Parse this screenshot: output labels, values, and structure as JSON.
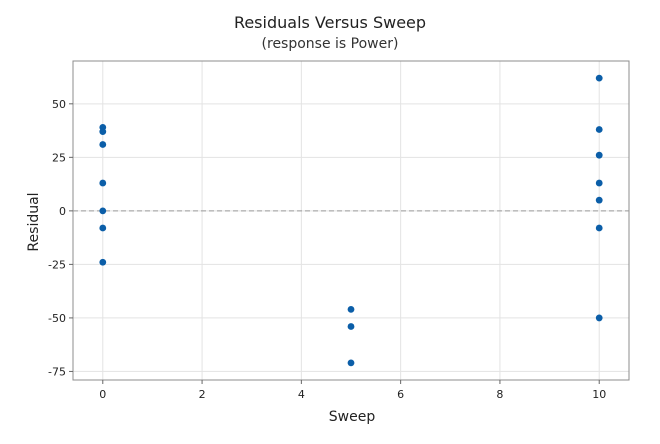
{
  "chart_data": {
    "type": "scatter",
    "title": "Residuals Versus Sweep",
    "subtitle": "(response is Power)",
    "xlabel": "Sweep",
    "ylabel": "Residual",
    "xlim": [
      -0.6,
      10.6
    ],
    "ylim": [
      -79,
      70
    ],
    "x_ticks": [
      0,
      2,
      4,
      6,
      8,
      10
    ],
    "y_ticks": [
      50,
      25,
      0,
      -25,
      -50,
      -75
    ],
    "grid": true,
    "reference_line": 0,
    "point_color": "#0b5ea8",
    "points": [
      {
        "x": 0,
        "y": 39
      },
      {
        "x": 0,
        "y": 37
      },
      {
        "x": 0,
        "y": 31
      },
      {
        "x": 0,
        "y": 13
      },
      {
        "x": 0,
        "y": 0
      },
      {
        "x": 0,
        "y": -8
      },
      {
        "x": 0,
        "y": -24
      },
      {
        "x": 5,
        "y": -46
      },
      {
        "x": 5,
        "y": -54
      },
      {
        "x": 5,
        "y": -71
      },
      {
        "x": 10,
        "y": 62
      },
      {
        "x": 10,
        "y": 38
      },
      {
        "x": 10,
        "y": 26
      },
      {
        "x": 10,
        "y": 13
      },
      {
        "x": 10,
        "y": 5
      },
      {
        "x": 10,
        "y": -8
      },
      {
        "x": 10,
        "y": -50
      }
    ]
  }
}
